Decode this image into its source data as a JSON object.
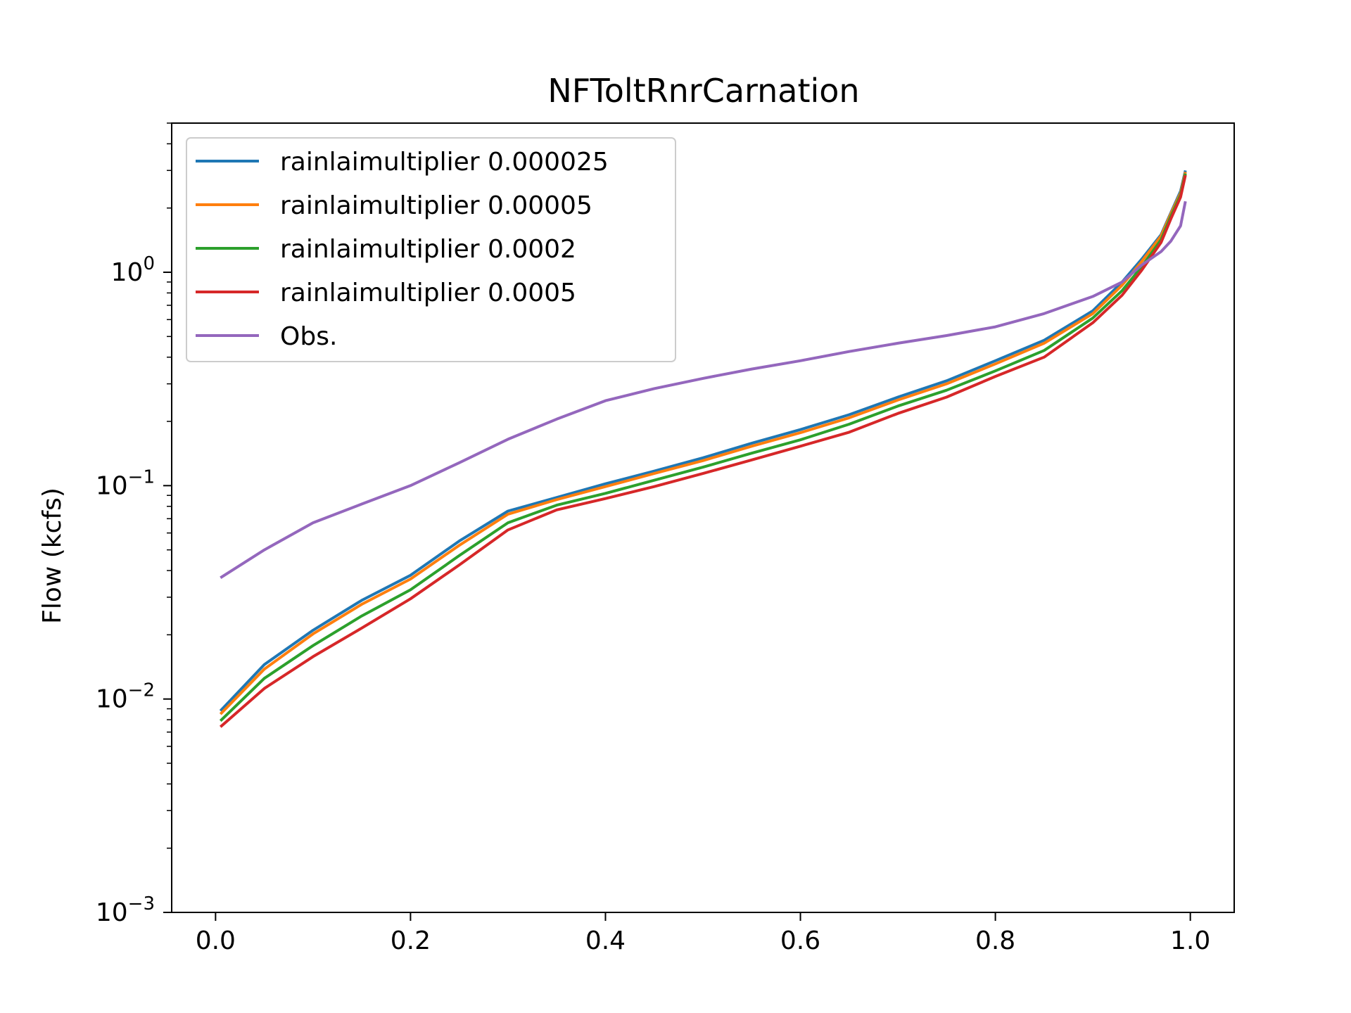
{
  "chart_data": {
    "type": "line",
    "title": "NFToltRnrCarnation",
    "xlabel": "",
    "ylabel": "Flow (kcfs)",
    "xlim": [
      -0.045,
      1.045
    ],
    "ylim": [
      0.001,
      5
    ],
    "yscale": "log",
    "grid": false,
    "legend_position": "top-left",
    "x_ticks": [
      {
        "value": 0.0,
        "label": "0.0"
      },
      {
        "value": 0.2,
        "label": "0.2"
      },
      {
        "value": 0.4,
        "label": "0.4"
      },
      {
        "value": 0.6,
        "label": "0.6"
      },
      {
        "value": 0.8,
        "label": "0.8"
      },
      {
        "value": 1.0,
        "label": "1.0"
      }
    ],
    "y_ticks": [
      {
        "value": 1,
        "base": "10",
        "exp": "0"
      },
      {
        "value": 0.1,
        "base": "10",
        "exp": "−1"
      },
      {
        "value": 0.01,
        "base": "10",
        "exp": "−2"
      },
      {
        "value": 0.001,
        "base": "10",
        "exp": "−3"
      }
    ],
    "x": [
      0.005,
      0.05,
      0.1,
      0.15,
      0.2,
      0.25,
      0.3,
      0.35,
      0.4,
      0.45,
      0.5,
      0.55,
      0.6,
      0.65,
      0.7,
      0.75,
      0.8,
      0.85,
      0.9,
      0.93,
      0.95,
      0.97,
      0.98,
      0.99,
      0.995
    ],
    "series": [
      {
        "name": "rainlaimultiplier 0.000025",
        "color": "#1f77b4",
        "values": [
          0.0088,
          0.0145,
          0.021,
          0.029,
          0.038,
          0.055,
          0.076,
          0.088,
          0.102,
          0.117,
          0.135,
          0.158,
          0.183,
          0.215,
          0.26,
          0.31,
          0.385,
          0.48,
          0.66,
          0.9,
          1.15,
          1.5,
          1.9,
          2.4,
          3.0
        ]
      },
      {
        "name": "rainlaimultiplier 0.00005",
        "color": "#ff7f0e",
        "values": [
          0.0085,
          0.0138,
          0.0202,
          0.0278,
          0.0365,
          0.0525,
          0.0735,
          0.086,
          0.099,
          0.114,
          0.131,
          0.153,
          0.177,
          0.208,
          0.252,
          0.3,
          0.372,
          0.465,
          0.64,
          0.87,
          1.12,
          1.48,
          1.88,
          2.35,
          2.95
        ]
      },
      {
        "name": "rainlaimultiplier 0.0002",
        "color": "#2ca02c",
        "values": [
          0.0079,
          0.0125,
          0.0178,
          0.0245,
          0.0325,
          0.047,
          0.067,
          0.081,
          0.092,
          0.106,
          0.122,
          0.142,
          0.164,
          0.194,
          0.236,
          0.28,
          0.345,
          0.43,
          0.61,
          0.82,
          1.06,
          1.42,
          1.83,
          2.3,
          2.9
        ]
      },
      {
        "name": "rainlaimultiplier 0.0005",
        "color": "#d62728",
        "values": [
          0.0074,
          0.0112,
          0.0158,
          0.0215,
          0.0295,
          0.0425,
          0.062,
          0.077,
          0.087,
          0.099,
          0.114,
          0.132,
          0.153,
          0.178,
          0.218,
          0.26,
          0.325,
          0.4,
          0.58,
          0.78,
          1.02,
          1.38,
          1.78,
          2.25,
          2.85
        ]
      },
      {
        "name": "Obs.",
        "color": "#9467bd",
        "values": [
          0.037,
          0.05,
          0.067,
          0.082,
          0.1,
          0.128,
          0.165,
          0.205,
          0.25,
          0.285,
          0.318,
          0.352,
          0.385,
          0.425,
          0.465,
          0.505,
          0.555,
          0.64,
          0.77,
          0.9,
          1.08,
          1.25,
          1.4,
          1.65,
          2.15
        ]
      }
    ]
  }
}
